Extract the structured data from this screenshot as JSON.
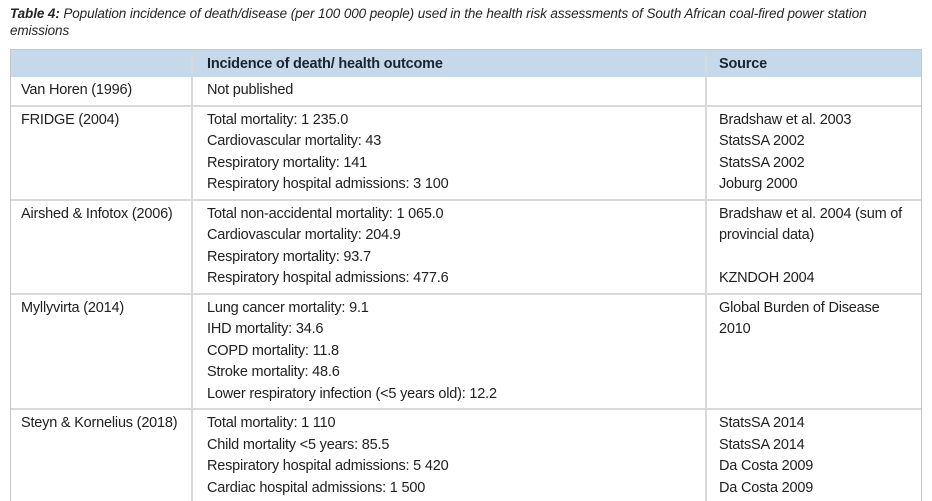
{
  "caption": {
    "label": "Table 4:",
    "text": " Population incidence of death/disease (per 100 000 people) used in the health risk assessments of South African coal-fired power station emissions"
  },
  "table": {
    "headers": [
      "",
      "Incidence of death/ health outcome",
      "Source"
    ],
    "rows": [
      {
        "study": "Van Horen (1996)",
        "incidence": [
          "Not published"
        ],
        "source": []
      },
      {
        "study": "FRIDGE (2004)",
        "incidence": [
          "Total mortality: 1 235.0",
          "Cardiovascular mortality: 43",
          "Respiratory mortality: 141",
          "Respiratory hospital admissions: 3 100"
        ],
        "source": [
          "Bradshaw et al. 2003",
          "StatsSA 2002",
          "StatsSA 2002",
          "Joburg 2000"
        ]
      },
      {
        "study": "Airshed & Infotox (2006)",
        "incidence": [
          "Total non-accidental mortality: 1 065.0",
          "Cardiovascular mortality: 204.9",
          "Respiratory mortality: 93.7",
          "Respiratory hospital admissions: 477.6"
        ],
        "source": [
          "Bradshaw et al. 2004 (sum of provincial data)",
          "",
          "KZNDOH 2004"
        ]
      },
      {
        "study": "Myllyvirta (2014)",
        "incidence": [
          "Lung cancer mortality: 9.1",
          "IHD mortality: 34.6",
          "COPD mortality: 11.8",
          "Stroke mortality: 48.6",
          "Lower respiratory infection (<5 years old): 12.2"
        ],
        "source": [
          "Global Burden of Disease 2010"
        ]
      },
      {
        "study": "Steyn & Kornelius (2018)",
        "incidence": [
          "Total mortality: 1 110",
          "Child mortality <5 years: 85.5",
          "Respiratory hospital admissions: 5 420",
          "Cardiac hospital admissions: 1 500"
        ],
        "source": [
          "StatsSA 2014",
          "StatsSA 2014",
          "Da Costa 2009",
          "Da Costa 2009"
        ]
      }
    ]
  },
  "colors": {
    "header_bg": "#c5d9ea",
    "separator": "#d9d9d9",
    "outer_border": "#c6c6c6",
    "text": "#212121",
    "header_text": "#1c2430"
  }
}
